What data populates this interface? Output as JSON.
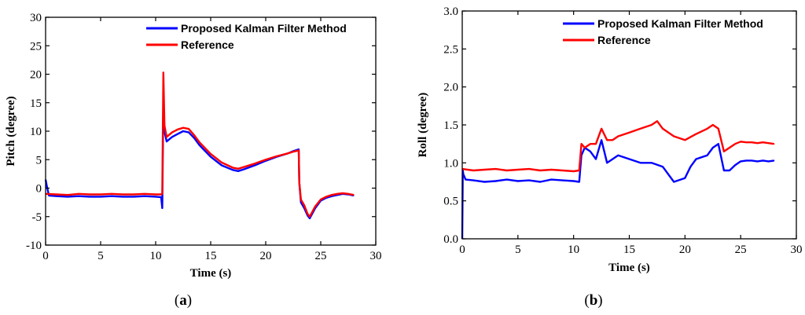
{
  "chart_data": [
    {
      "type": "line",
      "caption_letter": "a",
      "xlabel": "Time (s)",
      "ylabel": "Pitch (degree)",
      "xlim": [
        0,
        30
      ],
      "ylim": [
        -10,
        30
      ],
      "xticks": [
        0,
        5,
        10,
        15,
        20,
        25,
        30
      ],
      "yticks": [
        -10,
        -5,
        0,
        5,
        10,
        15,
        20,
        25,
        30
      ],
      "legend_position": "top-right",
      "grid": false,
      "series": [
        {
          "name": "Proposed Kalman Filter Method",
          "color": "#0000ff",
          "x": [
            0,
            0.1,
            0.3,
            1,
            2,
            3,
            4,
            5,
            6,
            7,
            8,
            9,
            10,
            10.5,
            10.6,
            10.7,
            10.8,
            11,
            11.5,
            12,
            12.5,
            13,
            13.5,
            14,
            15,
            16,
            17,
            17.5,
            18,
            19,
            20,
            21,
            22,
            22.5,
            23,
            23.05,
            23.2,
            23.5,
            23.8,
            24,
            24.5,
            25,
            25.5,
            26,
            26.5,
            27,
            27.5,
            28
          ],
          "y": [
            1.5,
            0.5,
            -1.3,
            -1.4,
            -1.5,
            -1.4,
            -1.5,
            -1.5,
            -1.4,
            -1.5,
            -1.5,
            -1.4,
            -1.5,
            -1.6,
            -3.5,
            15,
            10,
            8.2,
            9.0,
            9.5,
            10.0,
            9.8,
            8.8,
            7.5,
            5.5,
            4.0,
            3.2,
            3.0,
            3.3,
            4.0,
            4.8,
            5.5,
            6.1,
            6.5,
            6.8,
            1.0,
            -2.5,
            -3.5,
            -4.8,
            -5.3,
            -3.5,
            -2.2,
            -1.7,
            -1.4,
            -1.2,
            -1.0,
            -1.1,
            -1.3
          ]
        },
        {
          "name": "Reference",
          "color": "#ff0000",
          "x": [
            0,
            1,
            2,
            3,
            4,
            5,
            6,
            7,
            8,
            9,
            10,
            10.5,
            10.6,
            10.7,
            10.8,
            11,
            11.5,
            12,
            12.5,
            13,
            13.5,
            14,
            15,
            16,
            17,
            17.5,
            18,
            19,
            20,
            21,
            22,
            22.5,
            23,
            23.05,
            23.2,
            23.5,
            23.8,
            24,
            24.5,
            25,
            25.5,
            26,
            26.5,
            27,
            27.5,
            28
          ],
          "y": [
            -1.0,
            -1.1,
            -1.2,
            -1.0,
            -1.1,
            -1.1,
            -1.0,
            -1.1,
            -1.1,
            -1.0,
            -1.1,
            -1.1,
            -1.0,
            20.3,
            11,
            9.0,
            9.8,
            10.3,
            10.6,
            10.4,
            9.3,
            8.0,
            6.0,
            4.5,
            3.6,
            3.4,
            3.7,
            4.3,
            5.0,
            5.6,
            6.1,
            6.4,
            6.6,
            1.0,
            -2.0,
            -3.0,
            -4.5,
            -5.0,
            -3.2,
            -2.0,
            -1.5,
            -1.2,
            -1.0,
            -0.9,
            -1.0,
            -1.2
          ]
        }
      ]
    },
    {
      "type": "line",
      "caption_letter": "b",
      "xlabel": "Time (s)",
      "ylabel": "Roll (degree)",
      "xlim": [
        0,
        30
      ],
      "ylim": [
        0,
        3
      ],
      "xticks": [
        0,
        5,
        10,
        15,
        20,
        25,
        30
      ],
      "yticks": [
        "0.0",
        "0.5",
        "1.0",
        "1.5",
        "2.0",
        "2.5",
        "3.0"
      ],
      "legend_position": "top-right",
      "grid": false,
      "series": [
        {
          "name": "Proposed Kalman Filter Method",
          "color": "#0000ff",
          "x": [
            0,
            0.05,
            0.1,
            0.3,
            1,
            2,
            3,
            4,
            5,
            6,
            7,
            8,
            9,
            10,
            10.5,
            10.7,
            11,
            11.5,
            12,
            12.5,
            13,
            13.5,
            14,
            15,
            16,
            17,
            18,
            19,
            20,
            20.5,
            21,
            22,
            22.5,
            23,
            23.5,
            24,
            24.5,
            25,
            25.5,
            26,
            26.5,
            27,
            27.5,
            28
          ],
          "y": [
            0.0,
            0.9,
            0.85,
            0.78,
            0.77,
            0.75,
            0.76,
            0.78,
            0.76,
            0.77,
            0.75,
            0.78,
            0.77,
            0.76,
            0.75,
            1.1,
            1.2,
            1.15,
            1.05,
            1.3,
            1.0,
            1.05,
            1.1,
            1.05,
            1.0,
            1.0,
            0.95,
            0.75,
            0.8,
            0.95,
            1.05,
            1.1,
            1.2,
            1.25,
            0.9,
            0.9,
            0.97,
            1.02,
            1.03,
            1.03,
            1.02,
            1.03,
            1.02,
            1.03
          ]
        },
        {
          "name": "Reference",
          "color": "#ff0000",
          "x": [
            0,
            1,
            2,
            3,
            4,
            5,
            6,
            7,
            8,
            9,
            10,
            10.5,
            10.7,
            11,
            11.5,
            12,
            12.5,
            13,
            13.5,
            14,
            15,
            16,
            17,
            17.5,
            18,
            19,
            20,
            21,
            22,
            22.5,
            23,
            23.5,
            24,
            24.5,
            25,
            25.5,
            26,
            26.5,
            27,
            27.5,
            28
          ],
          "y": [
            0.92,
            0.9,
            0.91,
            0.92,
            0.9,
            0.91,
            0.92,
            0.9,
            0.91,
            0.9,
            0.89,
            0.9,
            1.25,
            1.2,
            1.25,
            1.25,
            1.45,
            1.3,
            1.3,
            1.35,
            1.4,
            1.45,
            1.5,
            1.55,
            1.45,
            1.35,
            1.3,
            1.38,
            1.45,
            1.5,
            1.45,
            1.15,
            1.2,
            1.25,
            1.28,
            1.27,
            1.27,
            1.26,
            1.27,
            1.26,
            1.25
          ]
        }
      ]
    }
  ]
}
